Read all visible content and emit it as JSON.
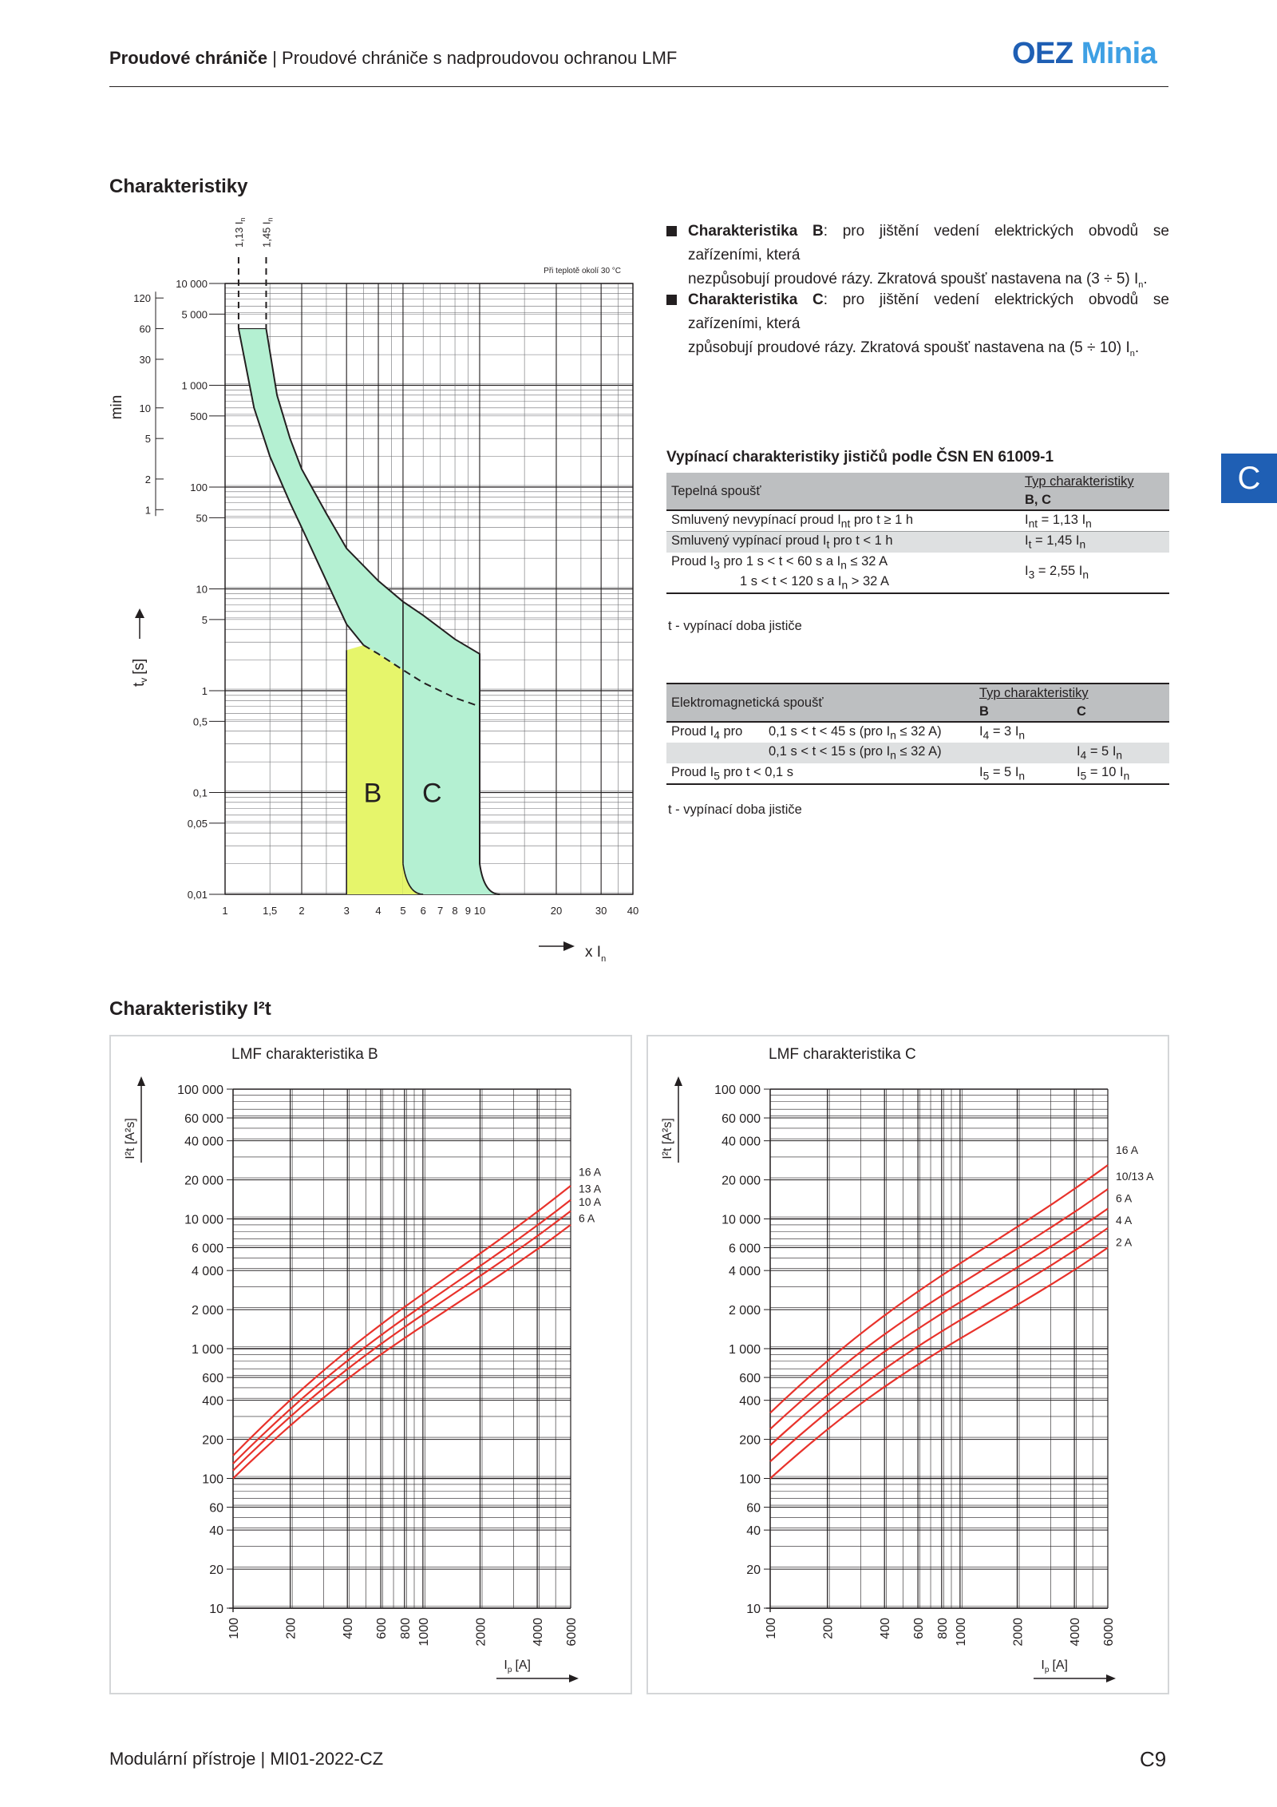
{
  "header": {
    "title_bold": "Proudové chrániče",
    "separator": "|",
    "title_rest": "Proudové chrániče s nadproudovou ochranou LMF",
    "logo_oez": "OEZ",
    "logo_minia": "Minia"
  },
  "side_tab": "C",
  "section1": {
    "title": "Charakteristiky"
  },
  "tripping_chart": {
    "axis_y_seconds_label": "t",
    "axis_y_seconds_sub": "v",
    "axis_y_seconds_unit": "[s]",
    "axis_y_minutes_label": "min",
    "axis_x_label": "x I",
    "axis_x_sub": "n",
    "temp_note": "Při teplotě okolí 30 °C",
    "marker_1": "1,13 I",
    "marker_2": "1,45 I",
    "marker_sub": "n",
    "label_b": "B",
    "label_c": "C",
    "y_ticks_s": [
      "10 000",
      "5 000",
      "1 000",
      "500",
      "100",
      "50",
      "10",
      "5",
      "1",
      "0,5",
      "0,1",
      "0,05",
      "0,01"
    ],
    "y_ticks_min": [
      "120",
      "60",
      "30",
      "10",
      "5",
      "2",
      "1"
    ],
    "x_ticks": [
      "1",
      "1,5",
      "2",
      "3",
      "4",
      "5",
      "6",
      "7",
      "8",
      "9",
      "10",
      "20",
      "30",
      "40"
    ]
  },
  "bullets": [
    {
      "name_bold": "Charakteristika B",
      "line1": ": pro jištění vedení elektrických obvodů se zařízeními, která",
      "line2": "nezpůsobují proudové rázy. Zkratová spoušť nastavena  na (3 ÷ 5) I",
      "sub": "n",
      "end": "."
    },
    {
      "name_bold": "Charakteristika C",
      "line1": ": pro jištění vedení elektrických obvodů se zařízeními, která",
      "line2": "způsobují proudové rázy. Zkratová  spoušť  nastavena  na (5 ÷ 10) I",
      "sub": "n",
      "end": "."
    }
  ],
  "table1": {
    "title": "Vypínací charakteristiky jističů podle ČSN EN 61009-1",
    "col_head": "Typ charakteristiky",
    "col_head2": "B, C",
    "row_head": "Tepelná spoušť",
    "rows": [
      {
        "a": "Smluvený nevypínací proud I",
        "a_sub": "nt",
        "a_end": " pro t ≥ 1 h",
        "b": "I",
        "b_sub": "nt",
        "b_end": " = 1,13 I",
        "b_sub2": "n"
      },
      {
        "a": "Smluvený vypínací proud I",
        "a_sub": "t",
        "a_end": " pro t < 1 h",
        "b": "I",
        "b_sub": "t",
        "b_end": " = 1,45 I",
        "b_sub2": "n"
      },
      {
        "a": "Proud I",
        "a_sub": "3",
        "a_end": " pro   1 s < t < 60 s  a  I",
        "a_sub2": "n",
        "a_end2": " ≤ 32 A",
        "b": "I",
        "b_sub": "3",
        "b_end": " = 2,55 I",
        "b_sub2": "n"
      },
      {
        "a": "1 s < t < 120 s  a  I",
        "a_sub": "n",
        "a_end": " > 32 A"
      }
    ],
    "note": "t - vypínací doba jističe"
  },
  "table2": {
    "row_head": "Elektromagnetická spoušť",
    "col_head": "Typ charakteristiky",
    "col_b": "B",
    "col_c": "C",
    "rows": [
      {
        "a": "Proud I",
        "a_sub": "4",
        "a_end": " pro",
        "m": "0,1 s < t < 45 s  (pro I",
        "m_sub": "n",
        "m_end": " ≤ 32 A)",
        "b": "I",
        "b_sub": "4",
        "b_end": " = 3 I",
        "b_sub2": "n",
        "c": ""
      },
      {
        "a": "",
        "m": "0,1 s < t < 15 s  (pro I",
        "m_sub": "n",
        "m_end": " ≤ 32 A)",
        "b": "",
        "c": "I",
        "c_sub": "4",
        "c_end": " = 5 I",
        "c_sub2": "n"
      },
      {
        "a": "Proud I",
        "a_sub": "5",
        "a_end": " pro t < 0,1 s",
        "m": "",
        "b": "I",
        "b_sub": "5",
        "b_end": " = 5 I",
        "b_sub2": "n",
        "c": "I",
        "c_sub": "5",
        "c_end": " = 10 I",
        "c_sub2": "n"
      }
    ],
    "note": "t - vypínací doba jističe"
  },
  "section2": {
    "title": "Charakteristiky I²t"
  },
  "i2t_charts": [
    {
      "title": "LMF charakteristika B",
      "y_label": "I²t [A²s]",
      "x_label": "I",
      "x_sub": "p",
      "x_unit": "[A]",
      "y_ticks": [
        "100 000",
        "60 000",
        "40 000",
        "20 000",
        "10 000",
        "6 000",
        "4 000",
        "2 000",
        "1 000",
        "600",
        "400",
        "200",
        "100",
        "60",
        "40",
        "20",
        "10"
      ],
      "x_ticks": [
        "100",
        "200",
        "400",
        "600",
        "800",
        "1000",
        "2000",
        "4000",
        "6000"
      ],
      "series": [
        {
          "name": "16 A",
          "x": [
            100,
            6000
          ],
          "y": [
            150,
            18000
          ]
        },
        {
          "name": "13 A",
          "x": [
            100,
            6000
          ],
          "y": [
            130,
            14000
          ]
        },
        {
          "name": "10 A",
          "x": [
            100,
            6000
          ],
          "y": [
            115,
            11500
          ]
        },
        {
          "name": "6 A",
          "x": [
            100,
            6000
          ],
          "y": [
            100,
            9000
          ]
        }
      ]
    },
    {
      "title": "LMF charakteristika C",
      "y_label": "I²t [A²s]",
      "x_label": "I",
      "x_sub": "p",
      "x_unit": "[A]",
      "y_ticks": [
        "100 000",
        "60 000",
        "40 000",
        "20 000",
        "10 000",
        "6 000",
        "4 000",
        "2 000",
        "1 000",
        "600",
        "400",
        "200",
        "100",
        "60",
        "40",
        "20",
        "10"
      ],
      "x_ticks": [
        "100",
        "200",
        "400",
        "600",
        "800",
        "1000",
        "2000",
        "4000",
        "6000"
      ],
      "series": [
        {
          "name": "16 A",
          "x": [
            100,
            6000
          ],
          "y": [
            320,
            26000
          ]
        },
        {
          "name": "10/13 A",
          "x": [
            100,
            6000
          ],
          "y": [
            240,
            17000
          ]
        },
        {
          "name": "6 A",
          "x": [
            100,
            6000
          ],
          "y": [
            180,
            12000
          ]
        },
        {
          "name": "4 A",
          "x": [
            100,
            6000
          ],
          "y": [
            135,
            8500
          ]
        },
        {
          "name": "2 A",
          "x": [
            100,
            6000
          ],
          "y": [
            100,
            6000
          ]
        }
      ]
    }
  ],
  "footer": {
    "left": "Modulární přístroje | MI01-2022-CZ",
    "right": "C9"
  }
}
